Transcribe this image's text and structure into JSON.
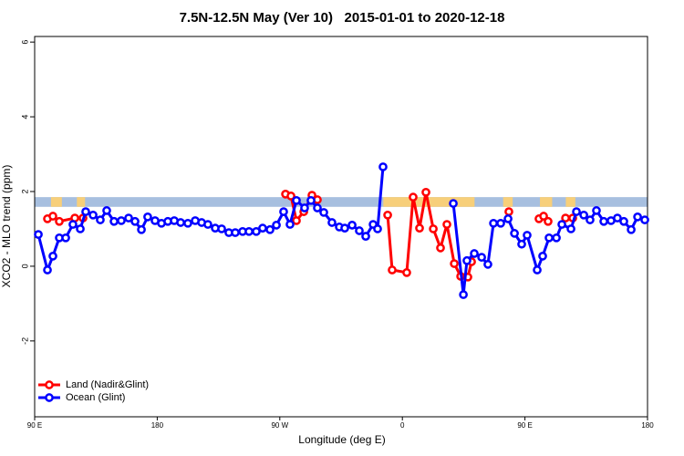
{
  "chart_data": {
    "type": "line",
    "title": "7.5N-12.5N May (Ver 10)   2015-01-01 to 2020-12-18",
    "xlabel": "Longitude (deg E)",
    "ylabel": "XCO2 - MLO trend (ppm)",
    "xlim": [
      90,
      540
    ],
    "ylim": [
      -4.03,
      6.15
    ],
    "xticks": [
      {
        "value": 90,
        "label": "90 E"
      },
      {
        "value": 180,
        "label": "180"
      },
      {
        "value": 270,
        "label": "90 W"
      },
      {
        "value": 360,
        "label": "0"
      },
      {
        "value": 450,
        "label": "90 E"
      },
      {
        "value": 540,
        "label": "180"
      }
    ],
    "yticks": [
      6,
      4,
      2,
      0,
      -2
    ],
    "band": {
      "range": [
        1.59,
        1.85
      ],
      "color": "#a7bfdf"
    },
    "highlights": {
      "color": "#f7cf7a",
      "x_ranges": [
        [
          102,
          110
        ],
        [
          121,
          127
        ],
        [
          346,
          413
        ],
        [
          434,
          441
        ],
        [
          461,
          470
        ],
        [
          480,
          487
        ]
      ]
    },
    "legend": "bottom-left",
    "series": [
      {
        "name": "Land (Nadir&Glint)",
        "color": "#ff0000",
        "x": [
          99.4,
          103.4,
          108.1,
          119.5,
          125.5,
          null,
          274.2,
          278.2,
          282.2,
          287.6,
          293.6,
          297.6,
          null,
          349.2,
          352.5,
          363.2,
          367.9,
          372.6,
          377.3,
          382.7,
          388.0,
          392.7,
          398.1,
          402.8,
          408.1,
          410.8,
          null,
          438.2,
          null,
          460.3,
          463.7,
          467.0,
          null,
          479.8,
          485.1
        ],
        "values": [
          1.27,
          1.34,
          1.2,
          1.29,
          1.29,
          null,
          1.93,
          1.88,
          1.22,
          1.46,
          1.9,
          1.78,
          null,
          1.37,
          -0.1,
          -0.17,
          1.85,
          1.02,
          1.98,
          1.0,
          0.49,
          1.12,
          0.07,
          -0.27,
          -0.29,
          0.12,
          null,
          1.46,
          null,
          1.27,
          1.34,
          1.2,
          null,
          1.29,
          1.29
        ]
      },
      {
        "name": "Ocean (Glint)",
        "color": "#0000ff",
        "x": [
          92.7,
          99.4,
          103.4,
          108.1,
          112.8,
          118.1,
          123.5,
          127.5,
          132.9,
          138.2,
          142.9,
          148.3,
          153.6,
          159.0,
          163.7,
          168.4,
          173.0,
          178.4,
          183.1,
          187.8,
          192.5,
          197.2,
          202.5,
          207.9,
          212.6,
          217.2,
          222.6,
          227.3,
          232.6,
          237.3,
          242.7,
          247.4,
          252.7,
          257.4,
          262.8,
          267.5,
          272.8,
          277.5,
          282.2,
          288.2,
          292.9,
          297.6,
          302.3,
          308.3,
          313.7,
          317.7,
          323.1,
          328.4,
          333.1,
          338.5,
          341.8,
          345.8,
          null,
          397.4,
          404.8,
          407.4,
          412.8,
          418.2,
          422.8,
          426.9,
          432.2,
          437.6,
          442.3,
          447.6,
          451.6,
          459.0,
          463.0,
          467.7,
          473.1,
          477.1,
          483.8,
          487.8,
          493.2,
          497.8,
          502.5,
          507.9,
          513.2,
          517.9,
          522.6,
          528.0,
          532.7,
          538.0
        ],
        "values": [
          0.85,
          -0.1,
          0.27,
          0.76,
          0.76,
          1.12,
          1.0,
          1.46,
          1.37,
          1.24,
          1.49,
          1.2,
          1.22,
          1.29,
          1.2,
          0.98,
          1.32,
          1.22,
          1.15,
          1.2,
          1.22,
          1.17,
          1.15,
          1.22,
          1.17,
          1.12,
          1.02,
          1.0,
          0.9,
          0.9,
          0.93,
          0.93,
          0.93,
          1.02,
          0.98,
          1.1,
          1.46,
          1.12,
          1.76,
          1.56,
          1.76,
          1.56,
          1.44,
          1.17,
          1.05,
          1.02,
          1.1,
          0.95,
          0.8,
          1.12,
          1.0,
          2.66,
          null,
          1.68,
          -0.76,
          0.15,
          0.34,
          0.24,
          0.05,
          1.15,
          1.15,
          1.27,
          0.88,
          0.59,
          0.83,
          -0.1,
          0.27,
          0.76,
          0.76,
          1.12,
          1.0,
          1.46,
          1.37,
          1.24,
          1.49,
          1.2,
          1.22,
          1.29,
          1.2,
          0.98,
          1.32,
          1.24
        ]
      }
    ]
  }
}
